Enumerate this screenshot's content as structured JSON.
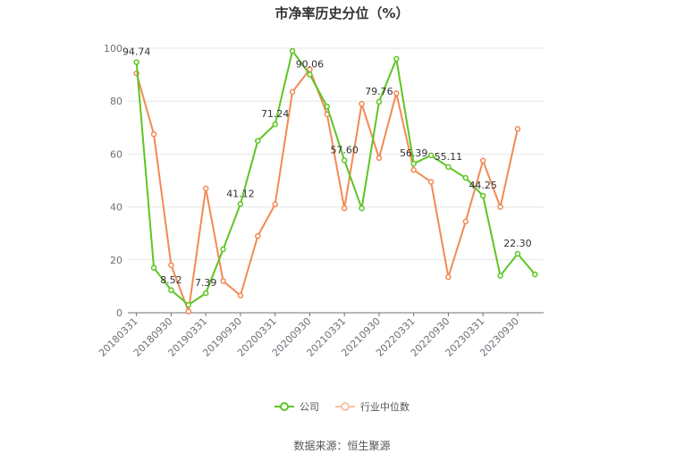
{
  "chart_data": {
    "type": "line",
    "title": "市净率历史分位（%）",
    "xlabel": "",
    "ylabel": "",
    "ylim": [
      0,
      100
    ],
    "yticks": [
      0,
      20,
      40,
      60,
      80,
      100
    ],
    "grid": true,
    "legend_position": "bottom",
    "x": [
      "20180331",
      "20180630",
      "20180930",
      "20181231",
      "20190331",
      "20190630",
      "20190930",
      "20191231",
      "20200331",
      "20200630",
      "20200930",
      "20201231",
      "20210331",
      "20210630",
      "20210930",
      "20211231",
      "20220331",
      "20220630",
      "20220930",
      "20221231",
      "20230331",
      "20230630",
      "20230930",
      "20231231"
    ],
    "x_tick_labels": [
      "20180331",
      "20180930",
      "20190331",
      "20190930",
      "20200331",
      "20200930",
      "20210331",
      "20210930",
      "20220331",
      "20220930",
      "20230331",
      "20230930"
    ],
    "series": [
      {
        "name": "公司",
        "color": "#5ec524",
        "values": [
          94.74,
          17.0,
          8.52,
          3.0,
          7.39,
          24.0,
          41.12,
          65.0,
          71.24,
          99.0,
          90.06,
          78.0,
          57.6,
          39.5,
          79.76,
          96.0,
          56.39,
          59.5,
          55.11,
          51.0,
          44.25,
          14.0,
          22.3,
          14.5
        ],
        "labels": [
          {
            "index": 0,
            "text": "94.74"
          },
          {
            "index": 2,
            "text": "8.52"
          },
          {
            "index": 4,
            "text": "7.39"
          },
          {
            "index": 6,
            "text": "41.12"
          },
          {
            "index": 8,
            "text": "71.24"
          },
          {
            "index": 10,
            "text": "90.06"
          },
          {
            "index": 12,
            "text": "57.60"
          },
          {
            "index": 14,
            "text": "79.76"
          },
          {
            "index": 16,
            "text": "56.39"
          },
          {
            "index": 18,
            "text": "55.11"
          },
          {
            "index": 20,
            "text": "44.25"
          },
          {
            "index": 22,
            "text": "22.30"
          }
        ]
      },
      {
        "name": "行业中位数",
        "color": "#f28a55",
        "values": [
          90.5,
          67.5,
          18.0,
          0.5,
          47.0,
          12.0,
          6.5,
          29.0,
          41.0,
          83.5,
          92.0,
          75.0,
          39.5,
          79.0,
          58.5,
          83.0,
          54.0,
          49.5,
          13.5,
          34.5,
          57.5,
          40.0,
          69.5,
          null
        ]
      }
    ]
  },
  "legend": {
    "company_label": "公司",
    "industry_label": "行业中位数"
  },
  "source_text": "数据来源：恒生聚源"
}
